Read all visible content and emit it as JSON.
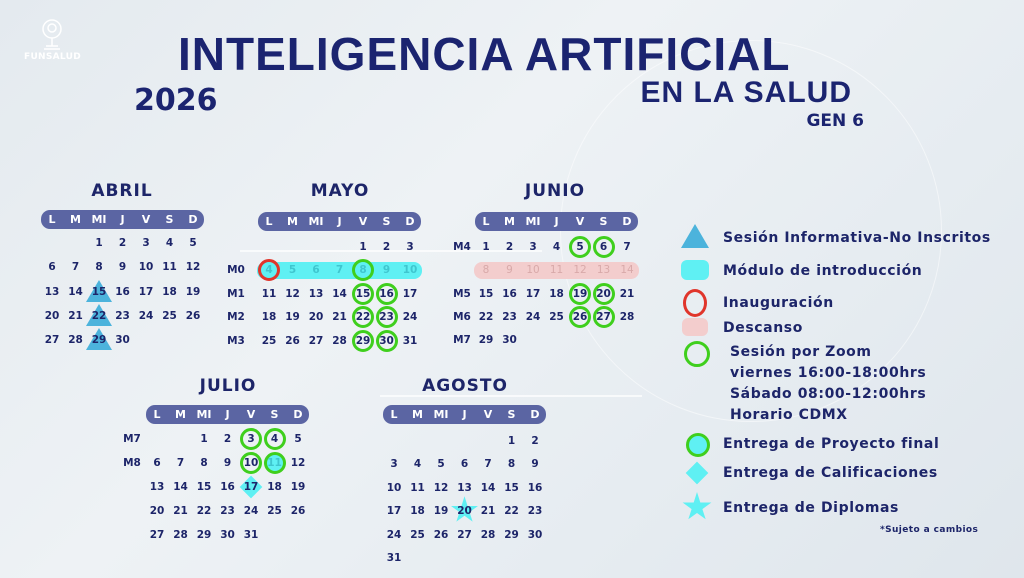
{
  "header": {
    "logo_text": "FUNSALUD",
    "title": "INTELIGENCIA ARTIFICIAL",
    "subtitle": "EN LA SALUD",
    "generation": "GEN 6",
    "year": "2026"
  },
  "weekdays": [
    "L",
    "M",
    "MI",
    "J",
    "V",
    "S",
    "D"
  ],
  "colors": {
    "navy": "#1b2470",
    "header_bar": "#5b65a3",
    "zoom_green": "#3fcf1d",
    "cyan": "#5ff0f3",
    "red": "#e0352b",
    "rest_pink": "#f3cdcd",
    "triangle_blue": "#4cb3dc"
  },
  "months": [
    {
      "id": "abril",
      "name": "ABRIL",
      "weeks": [
        {
          "label": "",
          "days": [
            null,
            null,
            1,
            2,
            3,
            4,
            5
          ]
        },
        {
          "label": "",
          "days": [
            6,
            7,
            8,
            9,
            10,
            11,
            12
          ]
        },
        {
          "label": "",
          "days": [
            13,
            14,
            15,
            16,
            17,
            18,
            19
          ]
        },
        {
          "label": "",
          "days": [
            20,
            21,
            22,
            23,
            24,
            25,
            26
          ]
        },
        {
          "label": "",
          "days": [
            27,
            28,
            29,
            30,
            null,
            null,
            null
          ]
        }
      ],
      "markers": {
        "15": "info-session",
        "22": "info-session",
        "29": "info-session"
      }
    },
    {
      "id": "mayo",
      "name": "MAYO",
      "weeks": [
        {
          "label": "",
          "days": [
            null,
            null,
            null,
            null,
            1,
            2,
            3
          ]
        },
        {
          "label": "M0",
          "band": "module",
          "days": [
            4,
            5,
            6,
            7,
            8,
            9,
            10
          ]
        },
        {
          "label": "M1",
          "days": [
            11,
            12,
            13,
            14,
            15,
            16,
            17
          ]
        },
        {
          "label": "M2",
          "days": [
            18,
            19,
            20,
            21,
            22,
            23,
            24
          ]
        },
        {
          "label": "M3",
          "days": [
            25,
            26,
            27,
            28,
            29,
            30,
            31
          ]
        }
      ],
      "markers": {
        "4": "inauguration",
        "8": "zoom-session",
        "15": "zoom-session",
        "16": "zoom-session",
        "22": "zoom-session",
        "23": "zoom-session",
        "29": "zoom-session",
        "30": "zoom-session"
      }
    },
    {
      "id": "junio",
      "name": "JUNIO",
      "weeks": [
        {
          "label": "M4",
          "days": [
            1,
            2,
            3,
            4,
            5,
            6,
            7
          ]
        },
        {
          "label": "",
          "band": "rest",
          "days": [
            8,
            9,
            10,
            11,
            12,
            13,
            14
          ]
        },
        {
          "label": "M5",
          "days": [
            15,
            16,
            17,
            18,
            19,
            20,
            21
          ]
        },
        {
          "label": "M6",
          "days": [
            22,
            23,
            24,
            25,
            26,
            27,
            28
          ]
        },
        {
          "label": "M7",
          "days": [
            29,
            30,
            null,
            null,
            null,
            null,
            null
          ]
        }
      ],
      "markers": {
        "5": "zoom-session",
        "6": "zoom-session",
        "19": "zoom-session",
        "20": "zoom-session",
        "26": "zoom-session",
        "27": "zoom-session"
      }
    },
    {
      "id": "julio",
      "name": "JULIO",
      "weeks": [
        {
          "label": "M7",
          "days": [
            null,
            null,
            1,
            2,
            3,
            4,
            5
          ]
        },
        {
          "label": "M8",
          "days": [
            6,
            7,
            8,
            9,
            10,
            11,
            12
          ]
        },
        {
          "label": "",
          "days": [
            13,
            14,
            15,
            16,
            17,
            18,
            19
          ]
        },
        {
          "label": "",
          "days": [
            20,
            21,
            22,
            23,
            24,
            25,
            26
          ]
        },
        {
          "label": "",
          "days": [
            27,
            28,
            29,
            30,
            31,
            null,
            null
          ]
        }
      ],
      "markers": {
        "3": "zoom-session",
        "4": "zoom-session",
        "10": "zoom-session",
        "11": "final-project",
        "17": "grades-delivery"
      }
    },
    {
      "id": "agosto",
      "name": "AGOSTO",
      "weeks": [
        {
          "label": "",
          "days": [
            null,
            null,
            null,
            null,
            null,
            1,
            2
          ]
        },
        {
          "label": "",
          "days": [
            3,
            4,
            5,
            6,
            7,
            8,
            9
          ]
        },
        {
          "label": "",
          "days": [
            10,
            11,
            12,
            13,
            14,
            15,
            16
          ]
        },
        {
          "label": "",
          "days": [
            17,
            18,
            19,
            20,
            21,
            22,
            23
          ]
        },
        {
          "label": "",
          "days": [
            24,
            25,
            26,
            27,
            28,
            29,
            30
          ]
        },
        {
          "label": "",
          "days": [
            31,
            null,
            null,
            null,
            null,
            null,
            null
          ]
        }
      ],
      "markers": {
        "20": "diploma-delivery"
      }
    }
  ],
  "legend": [
    {
      "icon": "triangle-icon",
      "label": "Sesión Informativa-No Inscritos"
    },
    {
      "icon": "cyan-band-icon",
      "label": "Módulo de introducción"
    },
    {
      "icon": "red-circle-icon",
      "label": "Inauguración"
    },
    {
      "icon": "pink-band-icon",
      "label": "Descanso"
    },
    {
      "icon": "green-circle-icon",
      "label": "Sesión por Zoom",
      "lines": [
        "viernes 16:00-18:00hrs",
        "Sábado 08:00-12:00hrs",
        "Horario CDMX"
      ]
    },
    {
      "icon": "filled-green-circle-icon",
      "label": "Entrega de Proyecto final"
    },
    {
      "icon": "diamond-icon",
      "label": "Entrega de Calificaciones"
    },
    {
      "icon": "star-icon",
      "label": "Entrega de Diplomas"
    }
  ],
  "footnote": "*Sujeto a cambios"
}
